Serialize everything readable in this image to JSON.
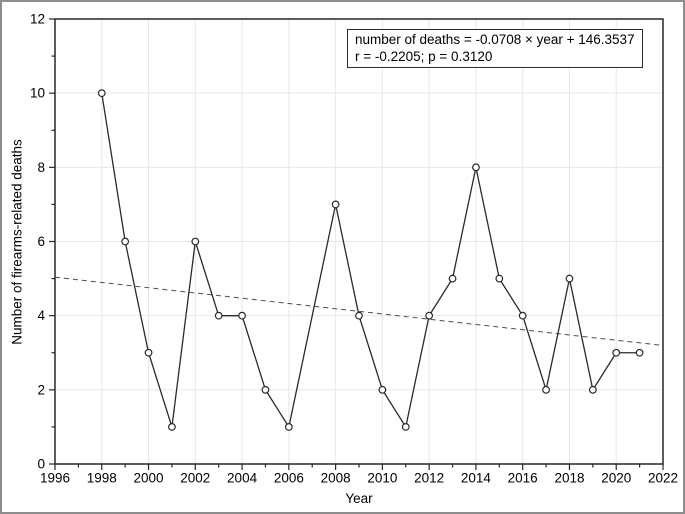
{
  "figure": {
    "background": "#ffffff",
    "border_color": "#8d8d8d"
  },
  "chart_data": {
    "type": "line",
    "title": "",
    "xlabel": "Year",
    "ylabel": "Number of firearms-related deaths",
    "xlim": [
      1996,
      2022
    ],
    "ylim": [
      0,
      12
    ],
    "x_tick_step": 2,
    "y_tick_step": 2,
    "grid": true,
    "legend_position": "none",
    "points": [
      [
        1998,
        10
      ],
      [
        1999,
        6
      ],
      [
        2000,
        3
      ],
      [
        2001,
        1
      ],
      [
        2002,
        6
      ],
      [
        2003,
        4
      ],
      [
        2004,
        4
      ],
      [
        2005,
        2
      ],
      [
        2006,
        1
      ],
      [
        2008,
        7
      ],
      [
        2009,
        4
      ],
      [
        2010,
        2
      ],
      [
        2011,
        1
      ],
      [
        2012,
        4
      ],
      [
        2013,
        5
      ],
      [
        2014,
        8
      ],
      [
        2015,
        5
      ],
      [
        2016,
        4
      ],
      [
        2017,
        2
      ],
      [
        2018,
        5
      ],
      [
        2019,
        2
      ],
      [
        2020,
        3
      ],
      [
        2021,
        3
      ]
    ],
    "missing_years": [
      1996,
      1997,
      2007
    ],
    "trendline": {
      "slope": -0.0708,
      "intercept": 146.3537,
      "style": "dashed"
    },
    "annotation": {
      "line1": "number of deaths = -0.0708 × year + 146.3537",
      "line2": "r = -0.2205; p = 0.3120"
    },
    "colors": {
      "series": "#2a2a2a",
      "marker_fill": "#ffffff",
      "grid": "#e7e7e7",
      "trend": "#4d4d4d",
      "axis": "#262626",
      "text": "#000000"
    }
  }
}
